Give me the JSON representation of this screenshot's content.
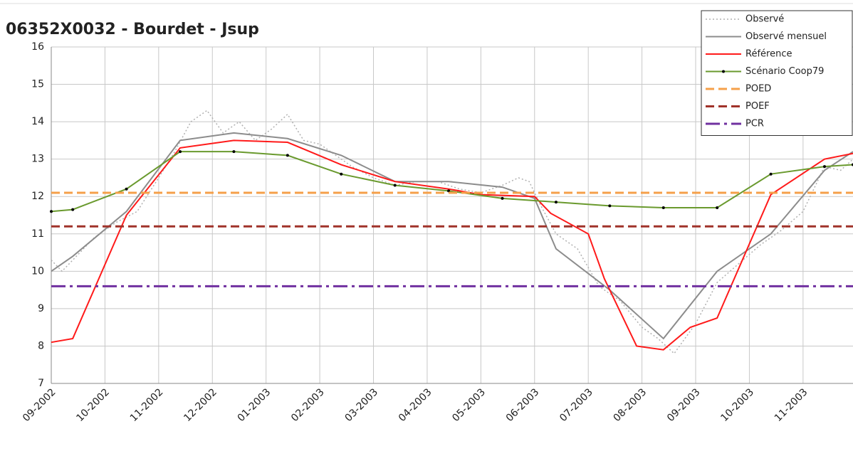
{
  "chart_data": {
    "type": "line",
    "title": "06352X0032 - Bourdet - Jsup",
    "xlim": [
      0,
      14.93
    ],
    "xticks": [
      {
        "value": 0,
        "label": "09-2002"
      },
      {
        "value": 1,
        "label": "10-2002"
      },
      {
        "value": 2,
        "label": "11-2002"
      },
      {
        "value": 3,
        "label": "12-2002"
      },
      {
        "value": 4,
        "label": "01-2003"
      },
      {
        "value": 5,
        "label": "02-2003"
      },
      {
        "value": 6,
        "label": "03-2003"
      },
      {
        "value": 7,
        "label": "04-2003"
      },
      {
        "value": 8,
        "label": "05-2003"
      },
      {
        "value": 9,
        "label": "06-2003"
      },
      {
        "value": 10,
        "label": "07-2003"
      },
      {
        "value": 11,
        "label": "08-2003"
      },
      {
        "value": 12,
        "label": "09-2003"
      },
      {
        "value": 13,
        "label": "10-2003"
      },
      {
        "value": 14,
        "label": "11-2003"
      }
    ],
    "ylim": [
      7,
      16
    ],
    "yticks": [
      7,
      8,
      9,
      10,
      11,
      12,
      13,
      14,
      15,
      16
    ],
    "grid": true,
    "legend": "top-right",
    "series": [
      {
        "name": "Observé",
        "color": "#b0b0b0",
        "style": "dotted",
        "markers": false,
        "x": [
          0,
          0.2,
          0.4,
          0.8,
          1.2,
          1.6,
          2.0,
          2.3,
          2.6,
          2.9,
          3.2,
          3.5,
          3.8,
          4.1,
          4.4,
          4.7,
          5.0,
          5.3,
          5.6,
          6.0,
          6.4,
          6.8,
          7.2,
          7.6,
          8.0,
          8.4,
          8.7,
          8.9,
          9.1,
          9.4,
          9.8,
          10.2,
          10.6,
          11.0,
          11.3,
          11.6,
          12.0,
          12.4,
          12.8,
          13.2,
          13.6,
          14.0,
          14.4,
          14.7,
          14.93
        ],
        "values": [
          10.3,
          10.0,
          10.3,
          10.9,
          11.3,
          11.6,
          12.5,
          13.2,
          14.0,
          14.3,
          13.7,
          14.0,
          13.5,
          13.8,
          14.2,
          13.5,
          13.4,
          13.1,
          12.8,
          12.5,
          12.3,
          12.4,
          12.4,
          12.2,
          12.1,
          12.3,
          12.5,
          12.4,
          11.8,
          11.0,
          10.6,
          9.6,
          9.2,
          8.5,
          8.2,
          7.8,
          8.6,
          9.7,
          10.2,
          10.7,
          11.1,
          11.6,
          12.8,
          12.7,
          13.0
        ]
      },
      {
        "name": "Observé mensuel",
        "color": "#8c8c8c",
        "style": "solid",
        "markers": false,
        "x": [
          0,
          0.4,
          1.4,
          2.4,
          3.4,
          4.4,
          5.4,
          6.4,
          7.4,
          8.4,
          9.0,
          9.4,
          10.4,
          11.4,
          12.4,
          13.4,
          14.4,
          14.93
        ],
        "values": [
          10.0,
          10.4,
          11.6,
          13.5,
          13.7,
          13.55,
          13.1,
          12.4,
          12.4,
          12.25,
          11.95,
          10.6,
          9.5,
          8.2,
          10.0,
          11.0,
          12.7,
          13.2
        ]
      },
      {
        "name": "Référence",
        "color": "#ff1a1a",
        "style": "solid",
        "markers": false,
        "x": [
          0,
          0.4,
          1.4,
          2.4,
          3.4,
          4.4,
          5.4,
          6.4,
          7.4,
          8.0,
          9.0,
          9.3,
          10.0,
          10.3,
          10.9,
          11.4,
          11.9,
          12.4,
          13.4,
          14.4,
          14.93
        ],
        "values": [
          8.1,
          8.2,
          11.5,
          13.3,
          13.5,
          13.45,
          12.85,
          12.4,
          12.2,
          12.05,
          12.0,
          11.55,
          11.0,
          9.8,
          8.0,
          7.9,
          8.5,
          8.75,
          12.05,
          13.0,
          13.15
        ]
      },
      {
        "name": "Scénario Coop79",
        "color": "#6a9a2e",
        "style": "solid",
        "markers": true,
        "x": [
          0,
          0.4,
          1.4,
          2.4,
          3.4,
          4.4,
          5.4,
          6.4,
          7.4,
          8.4,
          9.4,
          10.4,
          11.4,
          12.4,
          13.4,
          14.4,
          14.93
        ],
        "values": [
          11.6,
          11.65,
          12.2,
          13.2,
          13.2,
          13.1,
          12.6,
          12.3,
          12.15,
          11.95,
          11.85,
          11.75,
          11.7,
          11.7,
          12.6,
          12.8,
          12.85
        ]
      },
      {
        "name": "POED",
        "color": "#f5a04a",
        "style": "dashed",
        "level": 12.1
      },
      {
        "name": "POEF",
        "color": "#a0322a",
        "style": "dashed",
        "level": 11.2
      },
      {
        "name": "PCR",
        "color": "#7030a0",
        "style": "dashdot",
        "level": 9.6
      }
    ]
  }
}
